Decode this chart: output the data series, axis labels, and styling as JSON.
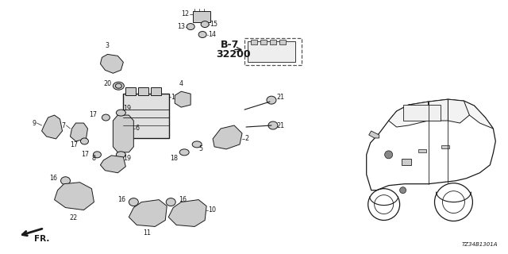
{
  "bg_color": "#ffffff",
  "fig_width": 6.4,
  "fig_height": 3.2,
  "dpi": 100,
  "diagram_code": "TZ34B1301A",
  "text_color": "#1a1a1a",
  "line_color": "#1a1a1a",
  "fill_color": "#cccccc",
  "fs_label": 5.8,
  "fs_ref": 7.5,
  "fs_code": 5.0
}
